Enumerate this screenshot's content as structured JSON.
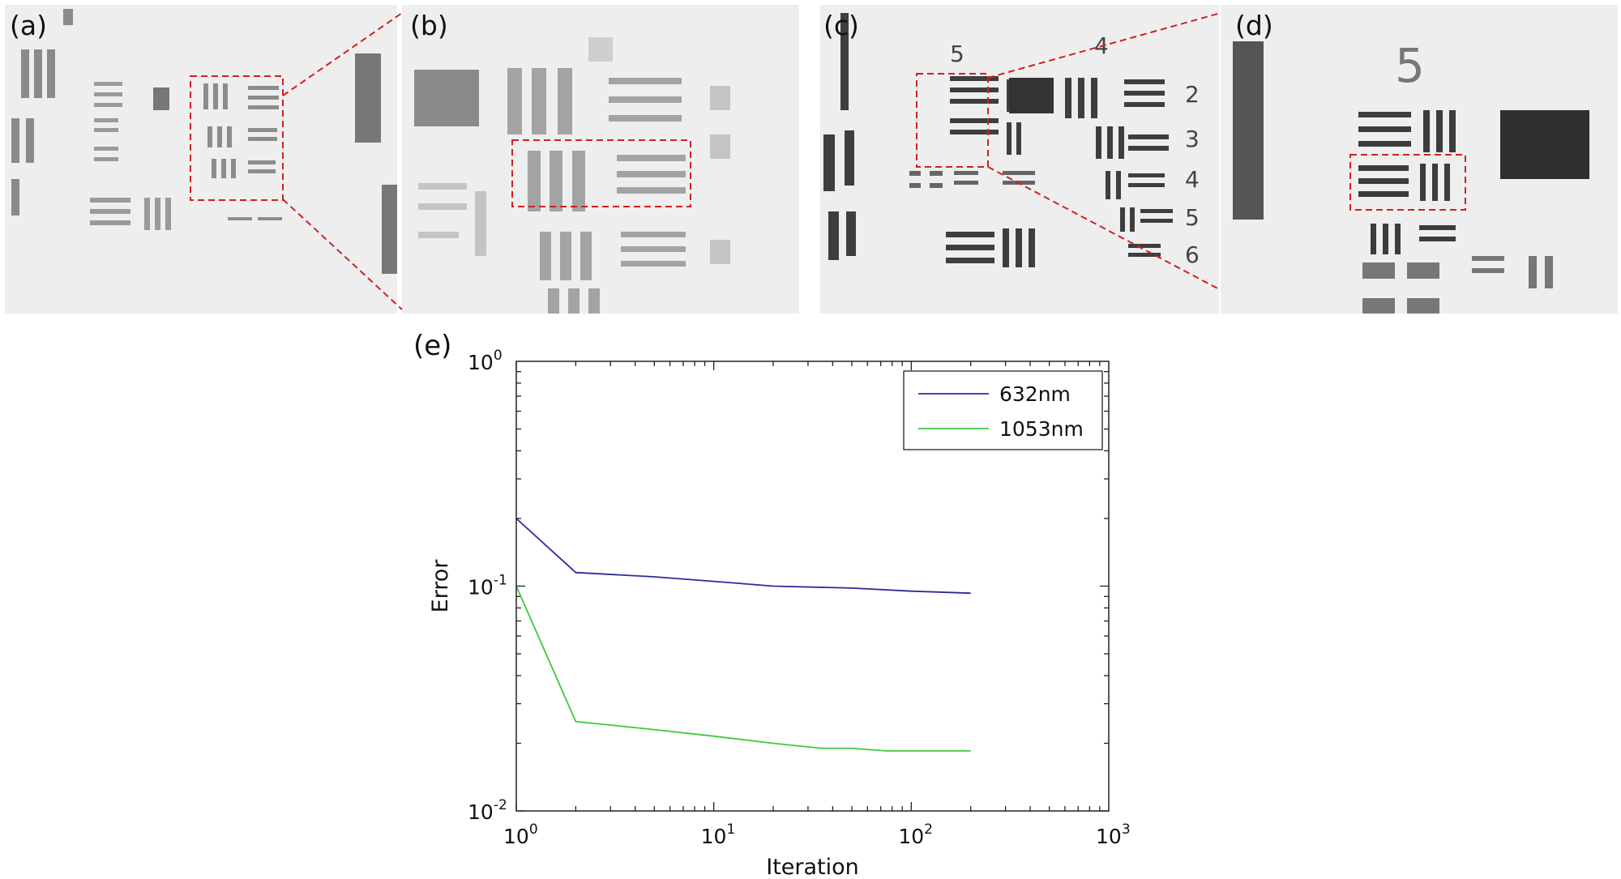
{
  "panels": {
    "a": "(a)",
    "b": "(b)",
    "c": "(c)",
    "d": "(d)",
    "e": "(e)",
    "c_digits": [
      "5",
      "4",
      "2",
      "3",
      "4",
      "5",
      "6"
    ],
    "d_digit": "5"
  },
  "chart_data": {
    "type": "line",
    "title": "",
    "xlabel": "Iteration",
    "ylabel": "Error",
    "xscale": "log",
    "yscale": "log",
    "xlim": [
      1,
      1000
    ],
    "ylim": [
      0.01,
      1
    ],
    "xticks": [
      {
        "base": "10",
        "exp": "0"
      },
      {
        "base": "10",
        "exp": "1"
      },
      {
        "base": "10",
        "exp": "2"
      },
      {
        "base": "10",
        "exp": "3"
      }
    ],
    "yticks": [
      {
        "base": "10",
        "exp": "-2"
      },
      {
        "base": "10",
        "exp": "-1"
      },
      {
        "base": "10",
        "exp": "0"
      }
    ],
    "legend_position": "top-right",
    "grid": false,
    "series": [
      {
        "name": "632nm",
        "color": "#2b2b9c",
        "x": [
          1,
          2,
          5,
          10,
          20,
          50,
          100,
          200
        ],
        "y": [
          0.2,
          0.115,
          0.11,
          0.105,
          0.1,
          0.098,
          0.095,
          0.093
        ]
      },
      {
        "name": "1053nm",
        "color": "#3ec83e",
        "x": [
          1,
          2,
          5,
          10,
          20,
          35,
          50,
          75,
          100,
          200
        ],
        "y": [
          0.1,
          0.025,
          0.023,
          0.0215,
          0.02,
          0.019,
          0.019,
          0.0185,
          0.0185,
          0.0185
        ]
      }
    ]
  }
}
